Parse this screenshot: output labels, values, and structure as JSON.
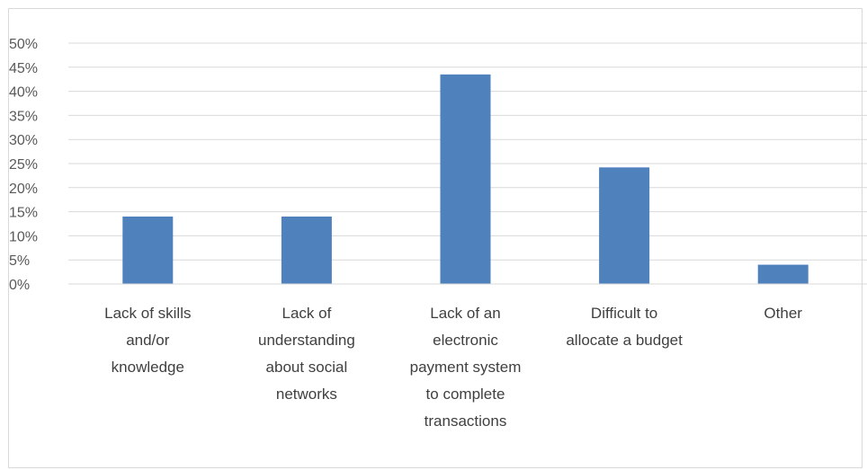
{
  "chart_data": {
    "type": "bar",
    "categories": [
      [
        "Lack of skills",
        "and/or",
        "knowledge"
      ],
      [
        "Lack of",
        "understanding",
        "about social",
        "networks"
      ],
      [
        "Lack of an",
        "electronic",
        "payment system",
        "to complete",
        "transactions"
      ],
      [
        "Difficult to",
        "allocate a budget"
      ],
      [
        "Other"
      ]
    ],
    "values": [
      14,
      14,
      43.5,
      24.2,
      4
    ],
    "y_ticks": [
      "0%",
      "5%",
      "10%",
      "15%",
      "20%",
      "25%",
      "30%",
      "35%",
      "40%",
      "45%",
      "50%"
    ],
    "ylim": [
      0,
      50
    ],
    "grid": true,
    "bar_color": "#4f81bd"
  }
}
